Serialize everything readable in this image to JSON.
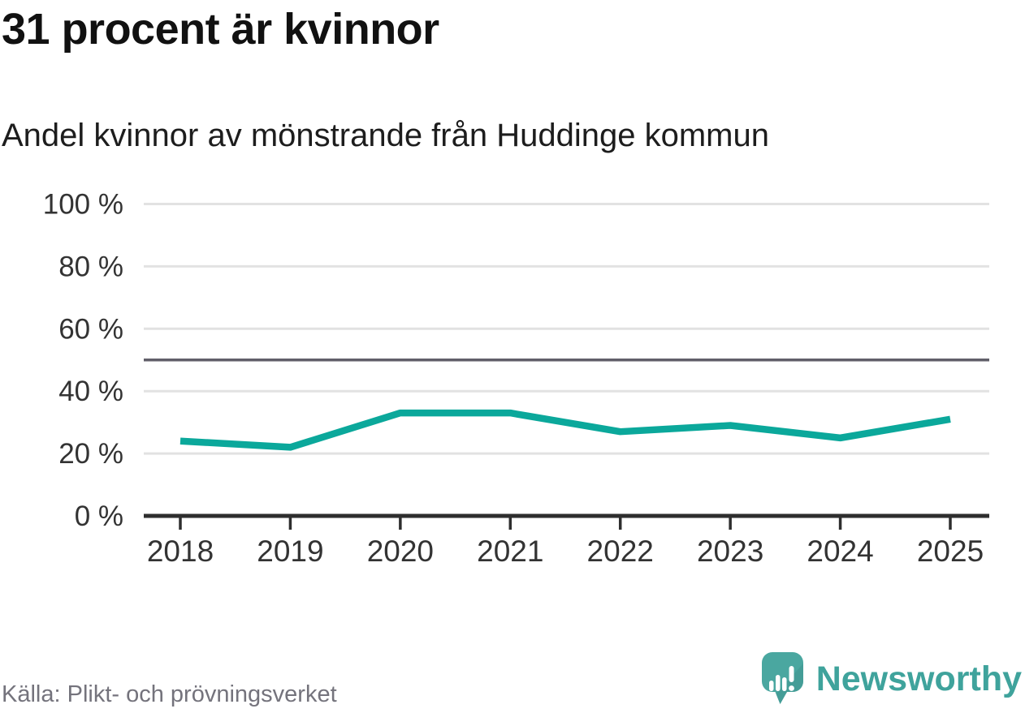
{
  "header": {
    "title": "31 procent är kvinnor",
    "subtitle": "Andel kvinnor av mönstrande från Huddinge kommun"
  },
  "footer": {
    "source": "Källa: Plikt- och prövningsverket",
    "brand": "Newsworthy"
  },
  "chart_data": {
    "type": "line",
    "title": "31 procent är kvinnor",
    "subtitle": "Andel kvinnor av mönstrande från Huddinge kommun",
    "x": [
      2018,
      2019,
      2020,
      2021,
      2022,
      2023,
      2024,
      2025
    ],
    "series": [
      {
        "name": "Andel kvinnor av mönstrande",
        "values": [
          24,
          22,
          33,
          33,
          27,
          29,
          25,
          31
        ]
      }
    ],
    "ylim": [
      0,
      100
    ],
    "yticks": [
      0,
      20,
      40,
      60,
      80,
      100
    ],
    "ytick_suffix": " %",
    "reference_line": 50,
    "grid": true,
    "legend": "none",
    "colors": {
      "line": "#0ba89b",
      "reference_line": "#615f69",
      "grid": "#e2e2e2",
      "axis": "#2e2e2e",
      "tick_labels": "#333333",
      "brand_teal": "#4aa7a0",
      "brand_teal_dark": "#3f958f"
    }
  }
}
